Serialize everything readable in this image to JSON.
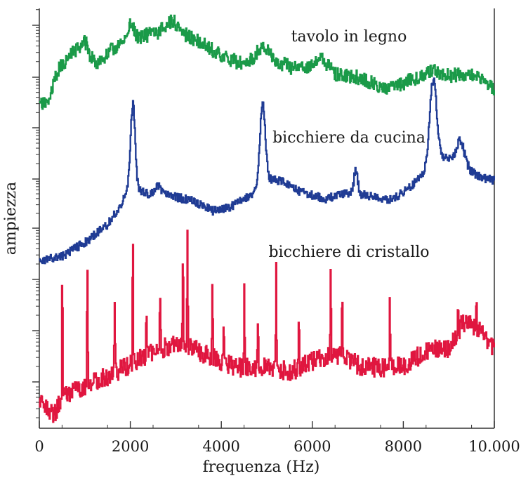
{
  "chart_data": {
    "type": "line",
    "xlabel": "frequenza (Hz)",
    "ylabel": "ampiezza",
    "xlim": [
      0,
      10000
    ],
    "x_ticks": [
      0,
      2000,
      4000,
      6000,
      8000,
      10000
    ],
    "x_tick_labels": [
      "0",
      "2000",
      "4000",
      "6000",
      "8000",
      "10.000"
    ],
    "yscale": "log",
    "y_decades": 8,
    "grid": false,
    "colors": {
      "tavolo": "#1a9a48",
      "bicchiere_cucina": "#1f3b94",
      "bicchiere_cristallo": "#e0163f",
      "axis": "#333333"
    },
    "series": [
      {
        "name": "tavolo in legno",
        "color": "#1a9a48",
        "peaks_hz": [
          1000,
          2000,
          2900,
          4900,
          6200,
          8700,
          9600
        ]
      },
      {
        "name": "bicchiere da cucina",
        "color": "#1f3b94",
        "peaks_hz": [
          2050,
          4900,
          6950,
          8650
        ]
      },
      {
        "name": "bicchiere di cristallo",
        "color": "#e0163f",
        "peaks_hz": [
          500,
          1050,
          1650,
          2050,
          2350,
          2650,
          3150,
          3250,
          3800,
          4500,
          5200,
          5700,
          6400,
          6650,
          7700,
          9200,
          9600
        ]
      }
    ]
  }
}
